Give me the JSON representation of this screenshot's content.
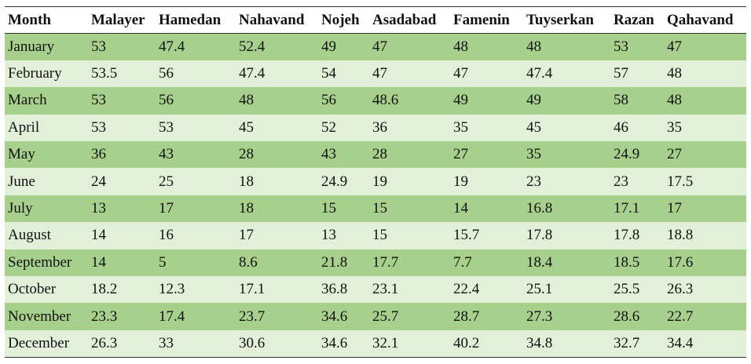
{
  "table": {
    "header": [
      "Month",
      "Malayer",
      "Hamedan",
      "Nahavand",
      "Nojeh",
      "Asadabad",
      "Famenin",
      "Tuyserkan",
      "Razan",
      "Qahavand"
    ],
    "rows": [
      [
        "January",
        53,
        47.4,
        52.4,
        49,
        47,
        48,
        48,
        53,
        47
      ],
      [
        "February",
        53.5,
        56,
        47.4,
        54,
        47,
        47,
        47.4,
        57,
        48
      ],
      [
        "March",
        53,
        56,
        48,
        56,
        48.6,
        49,
        49,
        58,
        48
      ],
      [
        "April",
        53,
        53,
        45,
        52,
        36,
        35,
        45,
        46,
        35
      ],
      [
        "May",
        36,
        43,
        28,
        43,
        28,
        27,
        35,
        24.9,
        27
      ],
      [
        "June",
        24,
        25,
        18,
        24.9,
        19,
        19,
        23,
        23,
        17.5
      ],
      [
        "July",
        13,
        17,
        18,
        15,
        15,
        14,
        16.8,
        17.1,
        17
      ],
      [
        "August",
        14,
        16,
        17,
        13,
        15,
        15.7,
        17.8,
        17.8,
        18.8
      ],
      [
        "September",
        14,
        5,
        8.6,
        21.8,
        17.7,
        7.7,
        18.4,
        18.5,
        17.6
      ],
      [
        "October",
        18.2,
        12.3,
        17.1,
        36.8,
        23.1,
        22.4,
        25.1,
        25.5,
        26.3
      ],
      [
        "November",
        23.3,
        17.4,
        23.7,
        34.6,
        25.7,
        28.7,
        27.3,
        28.6,
        22.7
      ],
      [
        "December",
        26.3,
        33,
        30.6,
        34.6,
        32.1,
        40.2,
        34.8,
        32.7,
        34.4
      ]
    ]
  }
}
